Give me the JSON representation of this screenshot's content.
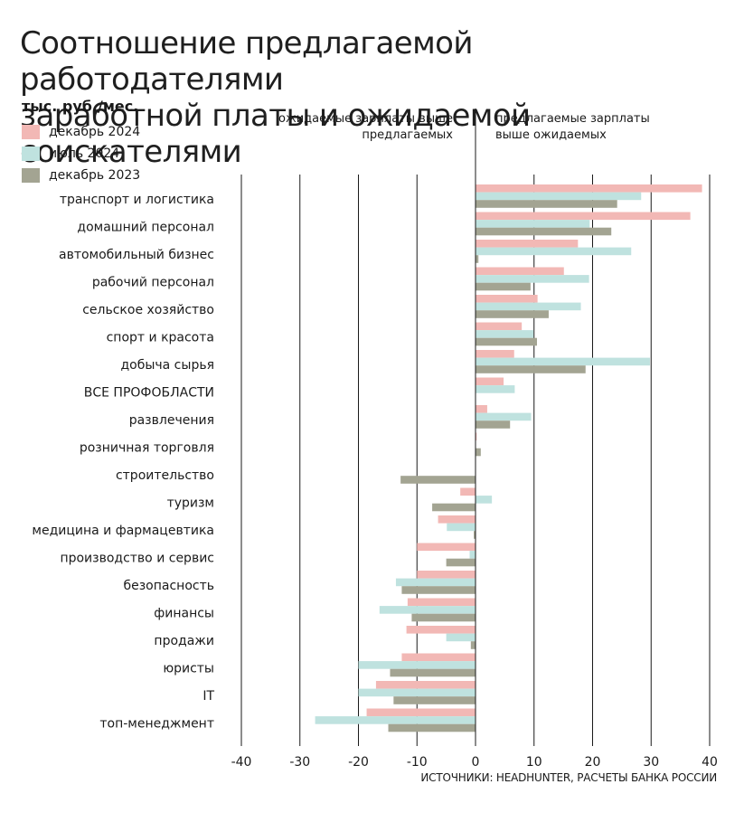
{
  "chart_data": {
    "type": "bar",
    "orientation": "horizontal",
    "title_lines": [
      "Соотношение предлагаемой работодателями",
      "заработной платы и ожидаемой соискателями"
    ],
    "unit": "тыс. руб./мес.",
    "hint_left": [
      "ожидаемые зарплаты выше",
      "предлагаемых"
    ],
    "hint_right": [
      "предлагаемые зарплаты",
      "выше ожидаемых"
    ],
    "source": "ИСТОЧНИКИ: HEADHUNTER, РАСЧЕТЫ БАНКА РОССИИ",
    "xlim": [
      -40,
      40
    ],
    "xticks": [
      -40,
      -30,
      -20,
      -10,
      0,
      10,
      20,
      30,
      40
    ],
    "xtick_labels": [
      "-40",
      "-30",
      "-20",
      "-10",
      "0",
      "10",
      "20",
      "30",
      "40"
    ],
    "grid": "vertical",
    "legend_position": "top-left",
    "categories": [
      "транспорт и логистика",
      "домашний персонал",
      "автомобильный бизнес",
      "рабочий персонал",
      "сельское хозяйство",
      "спорт и красота",
      "добыча сырья",
      "ВСЕ ПРОФОБЛАСТИ",
      "развлечения",
      "розничная торговля",
      "строительство",
      "туризм",
      "медицина и фармацевтика",
      "производство и сервис",
      "безопасность",
      "финансы",
      "продажи",
      "юристы",
      "IT",
      "топ-менеджмент"
    ],
    "series": [
      {
        "name": "декабрь 2024",
        "color": "#f2b8b5",
        "values": [
          38.7,
          36.7,
          17.5,
          15.1,
          10.6,
          7.9,
          6.6,
          4.8,
          2.0,
          0.2,
          0,
          -2.6,
          -6.4,
          -10.0,
          -10.0,
          -11.6,
          -11.8,
          -12.6,
          -17.0,
          -18.6
        ]
      },
      {
        "name": "июль 2024",
        "color": "#bfe2df",
        "values": [
          28.3,
          19.5,
          26.6,
          19.4,
          18.0,
          9.9,
          29.8,
          6.7,
          9.5,
          0,
          0,
          2.8,
          -4.9,
          -1.0,
          -13.6,
          -16.4,
          -5.0,
          -20.0,
          -20.0,
          -27.4
        ]
      },
      {
        "name": "декабрь 2023",
        "color": "#a3a492",
        "values": [
          24.2,
          23.2,
          0.5,
          9.4,
          12.5,
          10.5,
          18.8,
          0,
          5.9,
          0.9,
          -12.8,
          -7.4,
          -0.3,
          -5.0,
          -12.6,
          -10.9,
          -0.8,
          -14.6,
          -14.0,
          -14.9
        ]
      }
    ]
  }
}
